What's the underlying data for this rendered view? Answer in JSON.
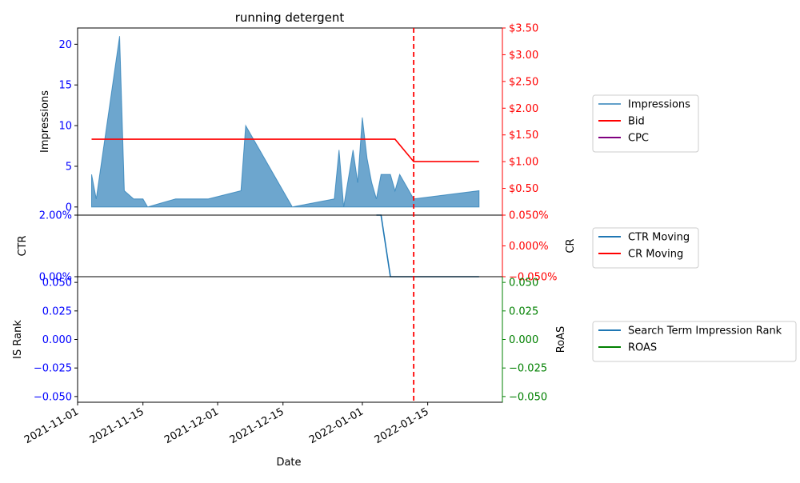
{
  "chart_data": [
    {
      "type": "area",
      "title": "running detergent",
      "xlabel": "",
      "ylabel": "Impressions",
      "y2label": "",
      "ylim": [
        -1,
        22
      ],
      "y2lim": [
        0.0,
        3.5
      ],
      "yticks": [
        {
          "value": 0,
          "label": "0"
        },
        {
          "value": 5,
          "label": "5"
        },
        {
          "value": 10,
          "label": "10"
        },
        {
          "value": 15,
          "label": "15"
        },
        {
          "value": 20,
          "label": "20"
        }
      ],
      "y2ticks": [
        {
          "value": 0.5,
          "label": "$0.50"
        },
        {
          "value": 1.0,
          "label": "$1.00"
        },
        {
          "value": 1.5,
          "label": "$1.50"
        },
        {
          "value": 2.0,
          "label": "$2.00"
        },
        {
          "value": 2.5,
          "label": "$2.50"
        },
        {
          "value": 3.0,
          "label": "$3.00"
        },
        {
          "value": 3.5,
          "label": "$3.50"
        }
      ],
      "left_tick_color": "#0000ff",
      "right_tick_color": "#ff0000",
      "series": [
        {
          "name": "Impressions",
          "axis": "left",
          "kind": "area",
          "color": "#1f77b4",
          "points": [
            [
              "2021-11-04",
              4
            ],
            [
              "2021-11-05",
              1
            ],
            [
              "2021-11-10",
              21
            ],
            [
              "2021-11-11",
              2
            ],
            [
              "2021-11-13",
              1
            ],
            [
              "2021-11-15",
              1
            ],
            [
              "2021-11-16",
              0
            ],
            [
              "2021-11-22",
              1
            ],
            [
              "2021-11-29",
              1
            ],
            [
              "2021-12-06",
              2
            ],
            [
              "2021-12-07",
              10
            ],
            [
              "2021-12-17",
              0
            ],
            [
              "2021-12-26",
              1
            ],
            [
              "2021-12-27",
              7
            ],
            [
              "2021-12-28",
              0
            ],
            [
              "2021-12-30",
              7
            ],
            [
              "2021-12-31",
              3
            ],
            [
              "2022-01-01",
              11
            ],
            [
              "2022-01-02",
              6
            ],
            [
              "2022-01-03",
              3
            ],
            [
              "2022-01-04",
              1
            ],
            [
              "2022-01-05",
              4
            ],
            [
              "2022-01-06",
              4
            ],
            [
              "2022-01-07",
              4
            ],
            [
              "2022-01-08",
              2
            ],
            [
              "2022-01-09",
              4
            ],
            [
              "2022-01-12",
              1
            ],
            [
              "2022-01-26",
              2
            ]
          ]
        },
        {
          "name": "Bid",
          "axis": "right",
          "kind": "line",
          "color": "#ff0000",
          "points": [
            [
              "2021-11-04",
              1.42
            ],
            [
              "2022-01-08",
              1.42
            ],
            [
              "2022-01-12",
              1.0
            ],
            [
              "2022-01-26",
              1.0
            ]
          ]
        },
        {
          "name": "CPC",
          "axis": "right",
          "kind": "line",
          "color": "#800080",
          "points": []
        }
      ]
    },
    {
      "type": "line",
      "title": "",
      "ylabel": "CTR",
      "y2label": "CR",
      "ylim": [
        0.0,
        2.0
      ],
      "y2lim": [
        -0.05,
        0.05
      ],
      "yticks": [
        {
          "value": 0.0,
          "label": "0.00%"
        },
        {
          "value": 2.0,
          "label": "2.00%"
        }
      ],
      "y2ticks": [
        {
          "value": -0.05,
          "label": "−0.050%"
        },
        {
          "value": 0.0,
          "label": "0.000%"
        },
        {
          "value": 0.05,
          "label": "0.050%"
        }
      ],
      "left_tick_color": "#0000ff",
      "right_tick_color": "#ff0000",
      "series": [
        {
          "name": "CTR Moving",
          "axis": "left",
          "kind": "line",
          "color": "#1f77b4",
          "points": [
            [
              "2022-01-04",
              2.0
            ],
            [
              "2022-01-05",
              2.0
            ],
            [
              "2022-01-07",
              0.0
            ],
            [
              "2022-01-26",
              0.0
            ]
          ]
        },
        {
          "name": "CR Moving",
          "axis": "right",
          "kind": "line",
          "color": "#ff0000",
          "points": []
        }
      ]
    },
    {
      "type": "line",
      "title": "",
      "xlabel": "Date",
      "ylabel": "IS Rank",
      "y2label": "RoAS",
      "ylim": [
        -0.055,
        0.055
      ],
      "y2lim": [
        -0.055,
        0.055
      ],
      "yticks": [
        {
          "value": -0.05,
          "label": "−0.050"
        },
        {
          "value": -0.025,
          "label": "−0.025"
        },
        {
          "value": 0.0,
          "label": "0.000"
        },
        {
          "value": 0.025,
          "label": "0.025"
        },
        {
          "value": 0.05,
          "label": "0.050"
        }
      ],
      "y2ticks": [
        {
          "value": -0.05,
          "label": "−0.050"
        },
        {
          "value": -0.025,
          "label": "−0.025"
        },
        {
          "value": 0.0,
          "label": "0.000"
        },
        {
          "value": 0.025,
          "label": "0.025"
        },
        {
          "value": 0.05,
          "label": "0.050"
        }
      ],
      "left_tick_color": "#0000ff",
      "right_tick_color": "#008000",
      "series": [
        {
          "name": "Search Term Impression Rank",
          "axis": "left",
          "kind": "line",
          "color": "#1f77b4",
          "points": []
        },
        {
          "name": "ROAS",
          "axis": "right",
          "kind": "line",
          "color": "#008000",
          "points": []
        }
      ]
    }
  ],
  "shared_x": {
    "xlim": [
      "2021-11-01",
      "2022-01-31"
    ],
    "ticks": [
      {
        "value": "2021-11-01",
        "label": "2021-11-01"
      },
      {
        "value": "2021-11-15",
        "label": "2021-11-15"
      },
      {
        "value": "2021-12-01",
        "label": "2021-12-01"
      },
      {
        "value": "2021-12-15",
        "label": "2021-12-15"
      },
      {
        "value": "2022-01-01",
        "label": "2022-01-01"
      },
      {
        "value": "2022-01-15",
        "label": "2022-01-15"
      }
    ],
    "label": "Date",
    "marker_date": "2022-01-12",
    "marker_color": "#ff0000"
  }
}
